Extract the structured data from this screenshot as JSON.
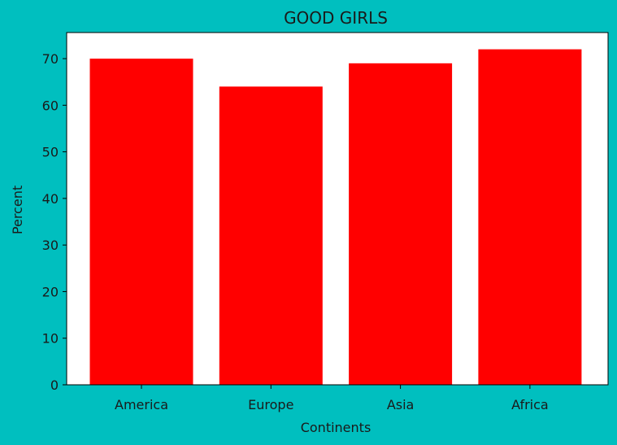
{
  "chart_data": {
    "type": "bar",
    "title": "GOOD GIRLS",
    "xlabel": "Continents",
    "ylabel": "Percent",
    "categories": [
      "America",
      "Europe",
      "Asia",
      "Africa"
    ],
    "values": [
      70,
      64,
      69,
      72
    ],
    "ylim": [
      0,
      75.6
    ],
    "yticks": [
      0,
      10,
      20,
      30,
      40,
      50,
      60,
      70
    ],
    "grid": false,
    "bar_color": "#ff0000",
    "background_color": "#00bfbf",
    "plot_background_color": "#ffffff"
  }
}
